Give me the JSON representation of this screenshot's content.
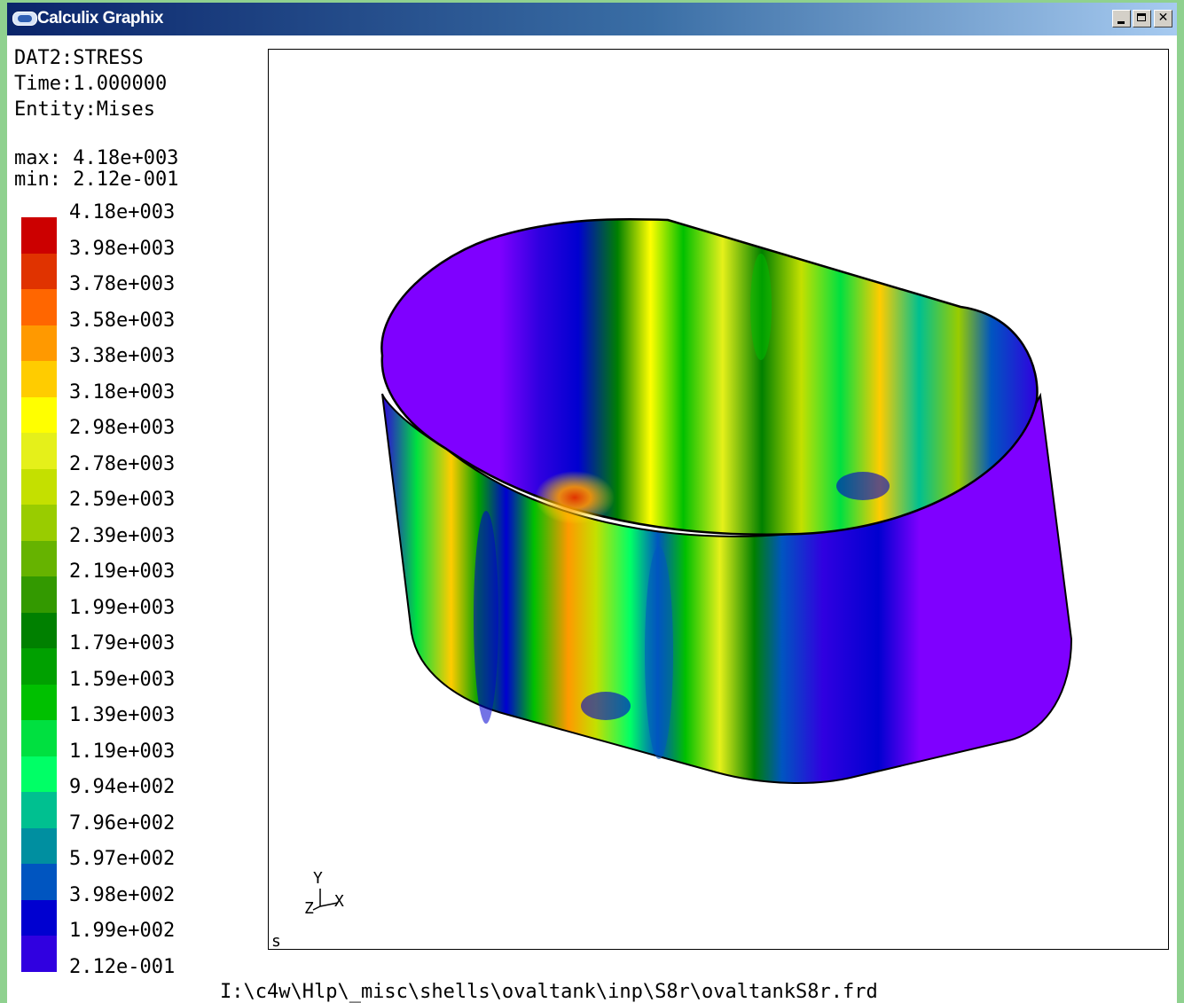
{
  "window": {
    "title": "Calculix Graphix",
    "min_glyph": "_",
    "max_glyph": "□",
    "close_glyph": "✕"
  },
  "info": {
    "dataset": "DAT2:STRESS",
    "time": "Time:1.000000",
    "entity": "Entity:Mises",
    "max": "max: 4.18e+003",
    "min": "min: 2.12e-001"
  },
  "legend": {
    "labels": [
      "4.18e+003",
      "3.98e+003",
      "3.78e+003",
      "3.58e+003",
      "3.38e+003",
      "3.18e+003",
      "2.98e+003",
      "2.78e+003",
      "2.59e+003",
      "2.39e+003",
      "2.19e+003",
      "1.99e+003",
      "1.79e+003",
      "1.59e+003",
      "1.39e+003",
      "1.19e+003",
      "9.94e+002",
      "7.96e+002",
      "5.97e+002",
      "3.98e+002",
      "1.99e+002",
      "2.12e-001"
    ],
    "colors": [
      "#cc0000",
      "#e03300",
      "#ff6600",
      "#ff9900",
      "#ffcc00",
      "#ffff00",
      "#e5f01a",
      "#c4e000",
      "#99cc00",
      "#66b300",
      "#339900",
      "#008000",
      "#00a000",
      "#00c000",
      "#00e040",
      "#00ff66",
      "#00c090",
      "#008fa0",
      "#0055c0",
      "#0000d0",
      "#3000e0",
      "#7f00ff"
    ]
  },
  "viewport": {
    "corner_label": "s",
    "axis_y": "Y",
    "axis_x": "X",
    "axis_z": "Z"
  },
  "status": {
    "file_path": "I:\\c4w\\Hlp\\_misc\\shells\\ovaltank\\inp\\S8r\\ovaltankS8r.frd"
  }
}
